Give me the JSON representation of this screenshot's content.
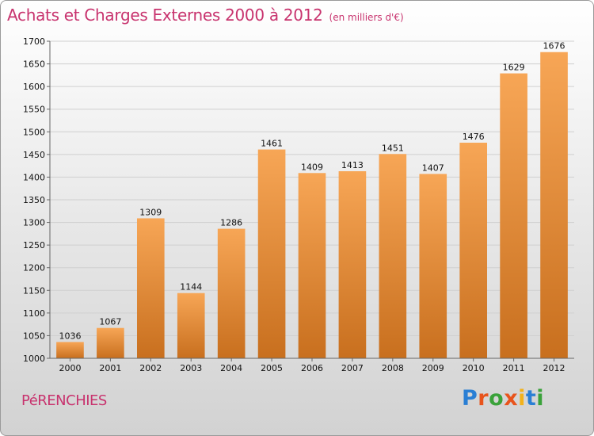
{
  "header": {
    "title": "Achats et Charges Externes 2000 à 2012",
    "subtitle": "(en milliers d'€)"
  },
  "commune": "PéRENCHIES",
  "logo": {
    "text": "Proxiti",
    "letters": [
      {
        "ch": "P",
        "color": "#2a7fd4"
      },
      {
        "ch": "r",
        "color": "#e8541c"
      },
      {
        "ch": "o",
        "color": "#3aa23a"
      },
      {
        "ch": "x",
        "color": "#e8541c"
      },
      {
        "ch": "i",
        "color": "#f2b21b"
      },
      {
        "ch": "t",
        "color": "#2a7fd4"
      },
      {
        "ch": "i",
        "color": "#3aa23a"
      }
    ]
  },
  "colors": {
    "title": "#c8336e",
    "bar_top": "#f7a656",
    "bar_bottom": "#c86f1e",
    "grid": "#cfcfcf",
    "axis": "#666666"
  },
  "chart_data": {
    "type": "bar",
    "title": "Achats et Charges Externes 2000 à 2012",
    "subtitle": "(en milliers d'€)",
    "xlabel": "",
    "ylabel": "",
    "categories": [
      "2000",
      "2001",
      "2002",
      "2003",
      "2004",
      "2005",
      "2006",
      "2007",
      "2008",
      "2009",
      "2010",
      "2011",
      "2012"
    ],
    "values": [
      1036,
      1067,
      1309,
      1144,
      1286,
      1461,
      1409,
      1413,
      1451,
      1407,
      1476,
      1629,
      1676
    ],
    "ylim": [
      1000,
      1700
    ],
    "yticks": [
      1000,
      1050,
      1100,
      1150,
      1200,
      1250,
      1300,
      1350,
      1400,
      1450,
      1500,
      1550,
      1600,
      1650,
      1700
    ],
    "grid": true,
    "data_labels": true
  }
}
